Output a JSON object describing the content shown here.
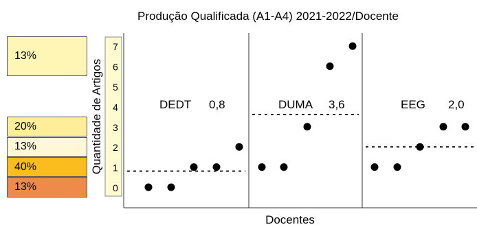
{
  "title": "Produção Qualificada (A1-A4) 2021-2022/Docente",
  "xlabel": "Docentes",
  "ylabel": "Quantidade de Artigos",
  "percent_boxes": [
    {
      "label": "13%",
      "color": "#FFF6B5",
      "levels": [
        6,
        7
      ]
    },
    {
      "label": "20%",
      "color": "#FFEE99",
      "levels": [
        3
      ]
    },
    {
      "label": "13%",
      "color": "#FFF8D6",
      "levels": [
        2
      ]
    },
    {
      "label": "40%",
      "color": "#FBBC1E",
      "levels": [
        1
      ]
    },
    {
      "label": "13%",
      "color": "#F08A4B",
      "levels": [
        0
      ]
    }
  ],
  "chart_data": {
    "type": "scatter",
    "title": "Produção Qualificada (A1-A4) 2021-2022/Docente",
    "xlabel": "Docentes",
    "ylabel": "Quantidade de Artigos",
    "yticks": [
      0,
      1,
      2,
      3,
      4,
      5,
      6,
      7
    ],
    "ylim": [
      -0.5,
      7.5
    ],
    "grid": false,
    "groups": [
      {
        "name": "DEDT",
        "mean_label": "0,8",
        "mean": 0.8,
        "values": [
          0,
          0,
          1,
          1,
          2
        ]
      },
      {
        "name": "DUMA",
        "mean_label": "3,6",
        "mean": 3.6,
        "values": [
          1,
          1,
          3,
          6,
          7
        ]
      },
      {
        "name": "EEG",
        "mean_label": "2,0",
        "mean": 2.0,
        "values": [
          1,
          1,
          2,
          3,
          3
        ]
      }
    ]
  }
}
